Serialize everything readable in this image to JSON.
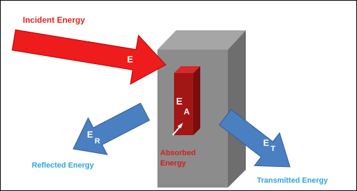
{
  "incident": {
    "label": "Incident Energy",
    "symbol": "E"
  },
  "absorbed": {
    "label_lines": [
      "Absorbed",
      "Energy"
    ],
    "symbol": "E",
    "subscript": "A"
  },
  "reflected": {
    "label": "Reflected Energy",
    "symbol": "E",
    "subscript": "R"
  },
  "transmitted": {
    "label": "Transmitted Energy",
    "symbol": "E",
    "subscript": "T"
  }
}
